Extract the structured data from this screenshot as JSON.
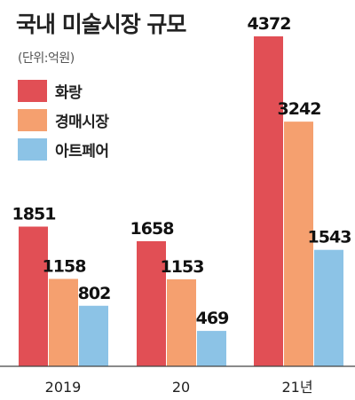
{
  "chart_data": {
    "type": "bar",
    "title": "국내 미술시장 규모",
    "subtitle": "(단위:억원)",
    "categories": [
      "2019",
      "20",
      "21년"
    ],
    "series": [
      {
        "name": "화랑",
        "values": [
          1851,
          1658,
          4372
        ],
        "color": "#e14f55"
      },
      {
        "name": "경매시장",
        "values": [
          1158,
          1153,
          3242
        ],
        "color": "#f5a06f"
      },
      {
        "name": "아트페어",
        "values": [
          802,
          469,
          1543
        ],
        "color": "#8cc3e6"
      }
    ],
    "ylim": [
      0,
      4372
    ],
    "grid": false,
    "legend_position": "top-left"
  }
}
